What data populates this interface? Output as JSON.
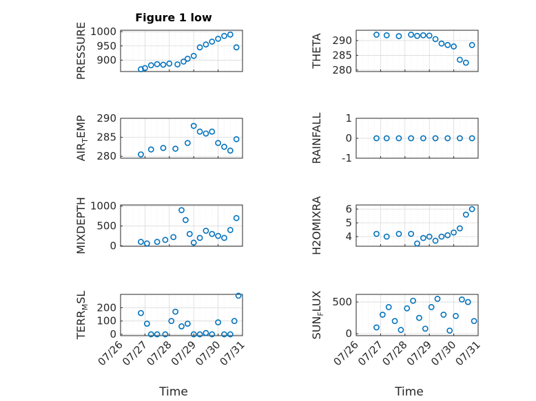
{
  "figure": {
    "title": "Figure 1 low",
    "accent": "#0072bd"
  },
  "chart_data": [
    {
      "type": "scatter",
      "ylabel": "PRESSURE",
      "ylim": [
        860,
        1005
      ],
      "yticks": [
        900,
        950,
        1000
      ],
      "x": [
        "07/26 20:00",
        "07/27 00:00",
        "07/27 06:00",
        "07/27 12:00",
        "07/27 18:00",
        "07/28 00:00",
        "07/28 08:00",
        "07/28 14:00",
        "07/28 18:00",
        "07/29 00:00",
        "07/29 06:00",
        "07/29 12:00",
        "07/29 18:00",
        "07/30 00:00",
        "07/30 06:00",
        "07/30 12:00",
        "07/30 18:00"
      ],
      "values": [
        868,
        872,
        882,
        886,
        884,
        888,
        885,
        895,
        905,
        915,
        945,
        955,
        965,
        975,
        985,
        990,
        945
      ]
    },
    {
      "type": "scatter",
      "ylabel": "THETA",
      "ylim": [
        279.5,
        293.5
      ],
      "yticks": [
        280,
        285,
        290
      ],
      "x": [
        "07/26 20:00",
        "07/27 06:00",
        "07/27 18:00",
        "07/28 06:00",
        "07/28 12:00",
        "07/28 18:00",
        "07/29 00:00",
        "07/29 06:00",
        "07/29 12:00",
        "07/29 18:00",
        "07/30 00:00",
        "07/30 06:00",
        "07/30 12:00",
        "07/30 18:00"
      ],
      "values": [
        292.0,
        291.8,
        291.5,
        292.0,
        291.6,
        291.8,
        291.7,
        290.5,
        289.0,
        288.5,
        288.0,
        283.5,
        282.5,
        288.5
      ]
    },
    {
      "type": "scatter",
      "ylabel": "AIR_TEMP",
      "ylim": [
        279.5,
        290
      ],
      "yticks": [
        280,
        285,
        290
      ],
      "x": [
        "07/26 20:00",
        "07/27 06:00",
        "07/27 18:00",
        "07/28 06:00",
        "07/28 18:00",
        "07/29 00:00",
        "07/29 06:00",
        "07/29 12:00",
        "07/29 18:00",
        "07/30 00:00",
        "07/30 06:00",
        "07/30 12:00",
        "07/30 18:00"
      ],
      "values": [
        280.5,
        281.8,
        282.2,
        282.0,
        283.5,
        288.0,
        286.5,
        286.0,
        286.5,
        283.5,
        282.5,
        281.5,
        284.5
      ]
    },
    {
      "type": "scatter",
      "ylabel": "RAINFALL",
      "ylim": [
        -1,
        1
      ],
      "yticks": [
        -1,
        0,
        1
      ],
      "x": [
        "07/26 20:00",
        "07/27 06:00",
        "07/27 18:00",
        "07/28 06:00",
        "07/28 18:00",
        "07/29 06:00",
        "07/29 18:00",
        "07/30 06:00",
        "07/30 18:00"
      ],
      "values": [
        0,
        0,
        0,
        0,
        0,
        0,
        0,
        0,
        0
      ]
    },
    {
      "type": "scatter",
      "ylabel": "MIXDEPTH",
      "ylim": [
        -10,
        1030
      ],
      "yticks": [
        0,
        500,
        1000
      ],
      "x": [
        "07/26 20:00",
        "07/27 02:00",
        "07/27 12:00",
        "07/27 20:00",
        "07/28 04:00",
        "07/28 12:00",
        "07/28 16:00",
        "07/28 20:00",
        "07/29 00:00",
        "07/29 06:00",
        "07/29 12:00",
        "07/29 18:00",
        "07/30 00:00",
        "07/30 06:00",
        "07/30 12:00",
        "07/30 18:00"
      ],
      "values": [
        100,
        60,
        100,
        150,
        220,
        900,
        650,
        300,
        80,
        200,
        380,
        300,
        250,
        200,
        400,
        700
      ]
    },
    {
      "type": "scatter",
      "ylabel": "H2OMIXRA",
      "ylim": [
        3.3,
        6.3
      ],
      "yticks": [
        4,
        5,
        6
      ],
      "x": [
        "07/26 20:00",
        "07/27 06:00",
        "07/27 18:00",
        "07/28 06:00",
        "07/28 12:00",
        "07/28 18:00",
        "07/29 00:00",
        "07/29 06:00",
        "07/29 12:00",
        "07/29 18:00",
        "07/30 00:00",
        "07/30 06:00",
        "07/30 12:00",
        "07/30 18:00"
      ],
      "values": [
        4.2,
        4.0,
        4.2,
        4.2,
        3.5,
        3.9,
        4.0,
        3.7,
        4.0,
        4.1,
        4.3,
        4.6,
        5.6,
        6.0
      ]
    },
    {
      "type": "scatter",
      "ylabel": "TERR_MSL",
      "ylim": [
        -10,
        300
      ],
      "yticks": [
        0,
        100,
        200
      ],
      "x": [
        "07/26 20:00",
        "07/27 02:00",
        "07/27 06:00",
        "07/27 12:00",
        "07/27 20:00",
        "07/28 02:00",
        "07/28 06:00",
        "07/28 12:00",
        "07/28 18:00",
        "07/29 00:00",
        "07/29 06:00",
        "07/29 12:00",
        "07/29 18:00",
        "07/30 00:00",
        "07/30 06:00",
        "07/30 12:00",
        "07/30 16:00",
        "07/30 20:00"
      ],
      "values": [
        160,
        80,
        0,
        0,
        0,
        100,
        170,
        60,
        80,
        0,
        0,
        10,
        0,
        90,
        0,
        0,
        100,
        290
      ]
    },
    {
      "type": "scatter",
      "ylabel": "SUN_FLUX",
      "ylim": [
        -30,
        620
      ],
      "yticks": [
        0,
        500
      ],
      "x": [
        "07/26 20:00",
        "07/27 02:00",
        "07/27 08:00",
        "07/27 14:00",
        "07/27 20:00",
        "07/28 02:00",
        "07/28 08:00",
        "07/28 14:00",
        "07/28 20:00",
        "07/29 02:00",
        "07/29 08:00",
        "07/29 14:00",
        "07/29 20:00",
        "07/30 02:00",
        "07/30 08:00",
        "07/30 14:00",
        "07/30 20:00"
      ],
      "values": [
        100,
        300,
        420,
        200,
        60,
        400,
        520,
        250,
        80,
        420,
        550,
        300,
        50,
        280,
        540,
        500,
        200
      ]
    }
  ],
  "x_axis": {
    "ticks": [
      "07/26",
      "07/27",
      "07/28",
      "07/29",
      "07/30",
      "07/31"
    ],
    "xlim": [
      "07/26 00:00",
      "07/31 00:00"
    ],
    "label": "Time"
  },
  "ylabel_main": [
    "PRESSURE",
    "THETA",
    "AIR",
    "RAINFALL",
    "MIXDEPTH",
    "H2OMIXRA",
    "TERR",
    "SUN"
  ],
  "ylabel_sub": [
    "",
    "",
    "T",
    "",
    "",
    "",
    "M",
    "F"
  ],
  "ylabel_end": [
    "",
    "",
    "EMP",
    "",
    "",
    "",
    "SL",
    "LUX"
  ]
}
